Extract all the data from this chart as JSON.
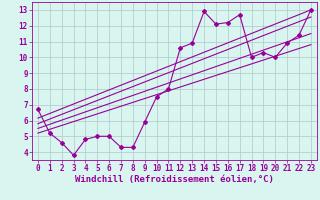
{
  "xlabel": "Windchill (Refroidissement éolien,°C)",
  "background_color": "#d8f5f0",
  "line_color": "#990099",
  "grid_color": "#b0c8c8",
  "xlim": [
    -0.5,
    23.5
  ],
  "ylim": [
    3.5,
    13.5
  ],
  "yticks": [
    4,
    5,
    6,
    7,
    8,
    9,
    10,
    11,
    12,
    13
  ],
  "xticks": [
    0,
    1,
    2,
    3,
    4,
    5,
    6,
    7,
    8,
    9,
    10,
    11,
    12,
    13,
    14,
    15,
    16,
    17,
    18,
    19,
    20,
    21,
    22,
    23
  ],
  "series": [
    [
      0,
      6.7
    ],
    [
      1,
      5.2
    ],
    [
      2,
      4.6
    ],
    [
      3,
      3.8
    ],
    [
      4,
      4.8
    ],
    [
      5,
      5.0
    ],
    [
      6,
      5.0
    ],
    [
      7,
      4.3
    ],
    [
      8,
      4.3
    ],
    [
      9,
      5.9
    ],
    [
      10,
      7.5
    ],
    [
      11,
      8.0
    ],
    [
      12,
      10.6
    ],
    [
      13,
      10.9
    ],
    [
      14,
      12.9
    ],
    [
      15,
      12.1
    ],
    [
      16,
      12.2
    ],
    [
      17,
      12.7
    ],
    [
      18,
      10.0
    ],
    [
      19,
      10.3
    ],
    [
      20,
      10.0
    ],
    [
      21,
      10.9
    ],
    [
      22,
      11.4
    ],
    [
      23,
      13.0
    ]
  ],
  "regression_lines": [
    {
      "x_start": 0,
      "y_start": 6.15,
      "x_end": 23,
      "y_end": 13.0
    },
    {
      "x_start": 0,
      "y_start": 5.8,
      "x_end": 23,
      "y_end": 12.55
    },
    {
      "x_start": 0,
      "y_start": 5.5,
      "x_end": 23,
      "y_end": 11.5
    },
    {
      "x_start": 0,
      "y_start": 5.2,
      "x_end": 23,
      "y_end": 10.8
    }
  ],
  "tick_fontsize": 5.5,
  "xlabel_fontsize": 6.5,
  "marker": "D",
  "marker_size": 2.0,
  "line_width": 0.8
}
